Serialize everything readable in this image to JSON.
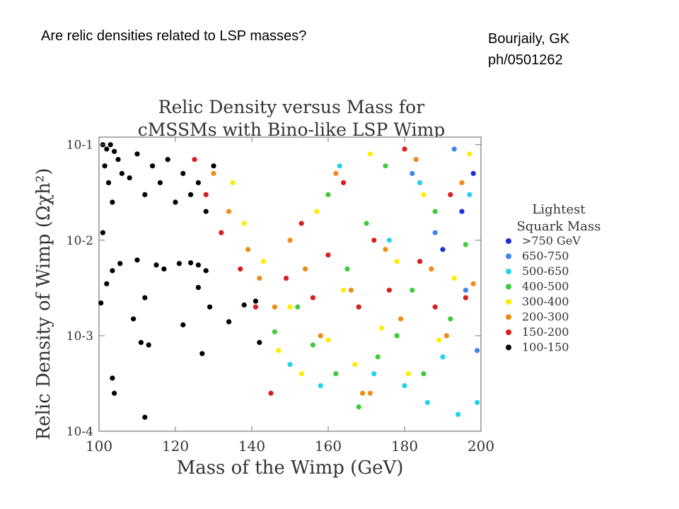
{
  "slide": {
    "title": "Are relic densities related to LSP masses?",
    "attribution_line1": "Bourjaily, GK",
    "attribution_line2": "ph/0501262"
  },
  "chart_data": {
    "type": "scatter",
    "title_line1": "Relic Density versus Mass for",
    "title_line2": "cMSSMs with Bino-like LSP Wimp",
    "xlabel": "Mass of the Wimp (GeV)",
    "ylabel": "Relic Density of Wimp (Ωχh²)",
    "xlim": [
      100,
      200
    ],
    "ylim": [
      0.0001,
      0.12
    ],
    "yscale": "log",
    "x_ticks": [
      100,
      120,
      140,
      160,
      180,
      200
    ],
    "x_tick_labels": [
      "100",
      "120",
      "140",
      "160",
      "180",
      "200"
    ],
    "y_ticks": [
      0.1,
      0.01,
      0.001,
      0.0001
    ],
    "y_tick_labels": [
      "10-1",
      "10-2",
      "10-3",
      "10-4"
    ],
    "grid": false,
    "legend_position": "right",
    "legend_title_line1": "Lightest",
    "legend_title_line2": "Squark Mass",
    "series": [
      {
        "name": ">750 GeV",
        "color": "#1a2fd6",
        "points": [
          [
            190,
            0.008
          ],
          [
            195,
            0.02
          ],
          [
            198,
            0.05
          ]
        ]
      },
      {
        "name": "650-750",
        "color": "#3b86f0",
        "points": [
          [
            182,
            0.05
          ],
          [
            188,
            0.012
          ],
          [
            193,
            0.09
          ],
          [
            196,
            0.003
          ],
          [
            199,
            0.0007
          ]
        ]
      },
      {
        "name": "500-650",
        "color": "#22d4ec",
        "points": [
          [
            150,
            0.0005
          ],
          [
            158,
            0.0003
          ],
          [
            163,
            0.06
          ],
          [
            168,
            0.002
          ],
          [
            172,
            0.0004
          ],
          [
            176,
            0.01
          ],
          [
            180,
            0.0003
          ],
          [
            184,
            0.04
          ],
          [
            186,
            0.0002
          ],
          [
            190,
            0.0006
          ],
          [
            194,
            0.00015
          ],
          [
            197,
            0.03
          ],
          [
            199,
            0.0002
          ]
        ]
      },
      {
        "name": "400-500",
        "color": "#3ccc3c",
        "points": [
          [
            146,
            0.0011
          ],
          [
            152,
            0.002
          ],
          [
            156,
            0.0008
          ],
          [
            160,
            0.03
          ],
          [
            162,
            0.0004
          ],
          [
            165,
            0.005
          ],
          [
            168,
            0.00018
          ],
          [
            170,
            0.015
          ],
          [
            173,
            0.0006
          ],
          [
            175,
            0.06
          ],
          [
            178,
            0.001
          ],
          [
            182,
            0.003
          ],
          [
            185,
            0.0004
          ],
          [
            188,
            0.02
          ],
          [
            192,
            0.0015
          ],
          [
            196,
            0.009
          ]
        ]
      },
      {
        "name": "300-400",
        "color": "#ffee00",
        "points": [
          [
            135,
            0.04
          ],
          [
            138,
            0.015
          ],
          [
            143,
            0.006
          ],
          [
            147,
            0.0007
          ],
          [
            150,
            0.002
          ],
          [
            153,
            0.0004
          ],
          [
            157,
            0.02
          ],
          [
            160,
            0.0009
          ],
          [
            164,
            0.003
          ],
          [
            167,
            0.0005
          ],
          [
            171,
            0.08
          ],
          [
            174,
            0.0012
          ],
          [
            178,
            0.006
          ],
          [
            181,
            0.0004
          ],
          [
            185,
            0.03
          ],
          [
            189,
            0.0009
          ],
          [
            193,
            0.004
          ],
          [
            197,
            0.08
          ]
        ]
      },
      {
        "name": "200-300",
        "color": "#f08a18",
        "points": [
          [
            130,
            0.05
          ],
          [
            134,
            0.02
          ],
          [
            139,
            0.008
          ],
          [
            142,
            0.004
          ],
          [
            146,
            0.002
          ],
          [
            150,
            0.01
          ],
          [
            154,
            0.005
          ],
          [
            158,
            0.001
          ],
          [
            162,
            0.05
          ],
          [
            166,
            0.003
          ],
          [
            169,
            0.00025
          ],
          [
            171,
            0.00025
          ],
          [
            175,
            0.008
          ],
          [
            179,
            0.0015
          ],
          [
            183,
            0.07
          ],
          [
            187,
            0.005
          ],
          [
            191,
            0.001
          ],
          [
            195,
            0.04
          ],
          [
            198,
            0.0035
          ]
        ]
      },
      {
        "name": "150-200",
        "color": "#d81e1e",
        "points": [
          [
            125,
            0.07
          ],
          [
            128,
            0.03
          ],
          [
            132,
            0.012
          ],
          [
            137,
            0.005
          ],
          [
            141,
            0.002
          ],
          [
            145,
            0.00025
          ],
          [
            149,
            0.004
          ],
          [
            153,
            0.015
          ],
          [
            156,
            0.0025
          ],
          [
            160,
            0.007
          ],
          [
            164,
            0.04
          ],
          [
            168,
            0.002
          ],
          [
            172,
            0.01
          ],
          [
            176,
            0.003
          ],
          [
            180,
            0.09
          ],
          [
            184,
            0.006
          ],
          [
            188,
            0.002
          ],
          [
            192,
            0.03
          ],
          [
            196,
            0.0025
          ]
        ]
      },
      {
        "name": "100-150",
        "color": "#000000",
        "points": [
          [
            101,
            0.1
          ],
          [
            102,
            0.09
          ],
          [
            101.5,
            0.06
          ],
          [
            103,
            0.1
          ],
          [
            104,
            0.085
          ],
          [
            102.5,
            0.04
          ],
          [
            105,
            0.07
          ],
          [
            106,
            0.05
          ],
          [
            103.5,
            0.025
          ],
          [
            108,
            0.045
          ],
          [
            110,
            0.08
          ],
          [
            112,
            0.03
          ],
          [
            114,
            0.06
          ],
          [
            116,
            0.04
          ],
          [
            118,
            0.07
          ],
          [
            120,
            0.025
          ],
          [
            122,
            0.05
          ],
          [
            124,
            0.03
          ],
          [
            126,
            0.04
          ],
          [
            128,
            0.02
          ],
          [
            130,
            0.06
          ],
          [
            100.5,
            0.0022
          ],
          [
            102,
            0.0035
          ],
          [
            103.5,
            0.0048
          ],
          [
            105.5,
            0.0057
          ],
          [
            110,
            0.0062
          ],
          [
            112,
            0.0025
          ],
          [
            109,
            0.0015
          ],
          [
            111,
            0.00085
          ],
          [
            113,
            0.0008
          ],
          [
            115,
            0.0055
          ],
          [
            117,
            0.005
          ],
          [
            121,
            0.0057
          ],
          [
            122,
            0.0013
          ],
          [
            124,
            0.0058
          ],
          [
            126,
            0.0055
          ],
          [
            127,
            0.00065
          ],
          [
            128,
            0.0048
          ],
          [
            126,
            0.0032
          ],
          [
            129,
            0.002
          ],
          [
            134,
            0.0014
          ],
          [
            138,
            0.0021
          ],
          [
            141,
            0.0023
          ],
          [
            142,
            0.00085
          ],
          [
            103.5,
            0.00036
          ],
          [
            104,
            0.00025
          ],
          [
            112,
            0.00014
          ],
          [
            101,
            0.012
          ]
        ]
      }
    ]
  }
}
